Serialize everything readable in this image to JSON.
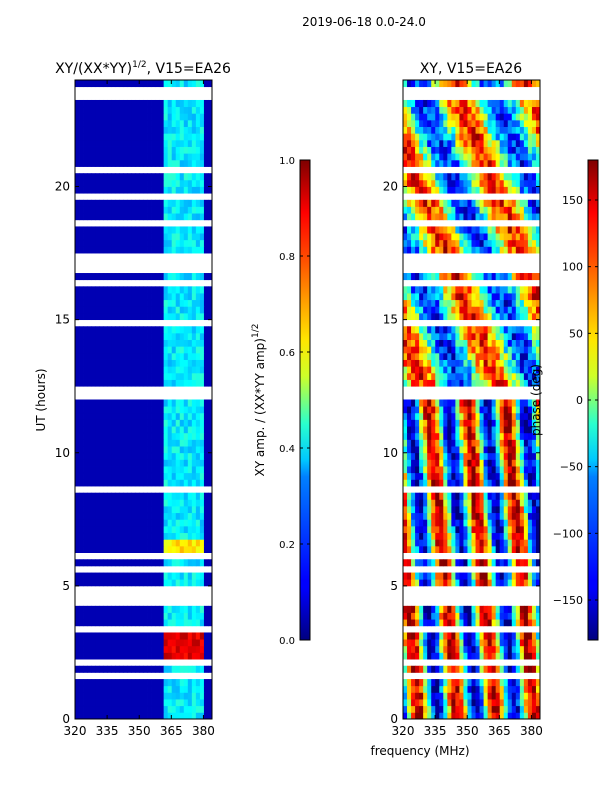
{
  "figure": {
    "suptitle": "2019-06-18 0.0-24.0",
    "xlabel": "frequency (MHz)"
  },
  "chart_data": [
    {
      "type": "heatmap",
      "title_main": "XY/(XX*YY)",
      "title_sup": "1/2",
      "title_suffix": ", V15=EA26",
      "xlabel": "",
      "ylabel": "UT (hours)",
      "xlim": [
        320,
        384
      ],
      "ylim": [
        0,
        24
      ],
      "xticks": [
        320,
        335,
        350,
        365,
        380
      ],
      "yticks": [
        0,
        5,
        10,
        15,
        20
      ],
      "colorbar": {
        "label_main": "XY amp. / (XX*YY amp)",
        "label_sup": "1/2",
        "range": [
          0.0,
          1.0
        ],
        "ticks": [
          "0.0",
          "0.2",
          "0.4",
          "0.6",
          "0.8",
          "1.0"
        ],
        "tick_values": [
          0.0,
          0.2,
          0.4,
          0.6,
          0.8,
          1.0
        ],
        "colormap": "jet"
      },
      "description_values": {
        "background_level": 0.05,
        "channel_band_MHz": [
          362,
          380
        ],
        "channel_band_level": 0.3,
        "bright_region_hours": [
          2.3,
          3.3
        ],
        "bright_region_level": 0.85,
        "bright_region2_hours": [
          6.1,
          6.8
        ],
        "bright_region2_level": 0.6
      }
    },
    {
      "type": "heatmap",
      "title_main": "XY",
      "title_sup": "",
      "title_suffix": ", V15=EA26",
      "xlabel": "",
      "ylabel": "",
      "xlim": [
        320,
        384
      ],
      "ylim": [
        0,
        24
      ],
      "xticks": [
        320,
        335,
        350,
        365,
        380
      ],
      "yticks": [
        0,
        5,
        10,
        15,
        20
      ],
      "colorbar": {
        "label_main": "phase (deg)",
        "label_sup": "",
        "range": [
          -180,
          180
        ],
        "ticks": [
          "-150",
          "-100",
          "-50",
          "0",
          "50",
          "100",
          "150"
        ],
        "tick_values": [
          -150,
          -100,
          -50,
          0,
          50,
          100,
          150
        ],
        "colormap": "jet"
      }
    }
  ],
  "flagged_gaps_hours": [
    [
      0.05,
      0.1
    ],
    [
      0.5,
      0.55
    ],
    [
      0.9,
      0.95
    ],
    [
      1.5,
      1.8
    ],
    [
      1.95,
      2.15
    ],
    [
      3.35,
      3.45
    ],
    [
      3.7,
      3.78
    ],
    [
      4.0,
      4.08
    ],
    [
      4.3,
      4.38
    ],
    [
      4.6,
      4.66
    ],
    [
      4.85,
      4.92
    ],
    [
      5.5,
      5.85
    ],
    [
      6.05,
      6.15
    ],
    [
      7.4,
      7.48
    ],
    [
      8.2,
      8.28
    ],
    [
      8.6,
      8.68
    ],
    [
      9.4,
      9.46
    ],
    [
      9.9,
      9.98
    ],
    [
      10.3,
      10.36
    ],
    [
      10.8,
      10.86
    ],
    [
      11.3,
      11.36
    ],
    [
      12.1,
      12.55
    ],
    [
      13.0,
      13.06
    ],
    [
      13.5,
      13.56
    ],
    [
      13.9,
      14.0
    ],
    [
      14.3,
      14.36
    ],
    [
      14.7,
      14.95
    ],
    [
      15.5,
      15.6
    ],
    [
      16.3,
      16.4
    ],
    [
      16.8,
      17.6
    ],
    [
      17.8,
      17.86
    ],
    [
      18.0,
      18.06
    ],
    [
      18.2,
      18.26
    ],
    [
      18.4,
      18.48
    ],
    [
      18.6,
      18.66
    ],
    [
      19.2,
      19.26
    ],
    [
      19.6,
      19.66
    ],
    [
      20.2,
      20.26
    ],
    [
      20.6,
      20.66
    ],
    [
      21.0,
      21.06
    ],
    [
      21.8,
      21.86
    ],
    [
      22.5,
      22.56
    ],
    [
      23.0,
      23.06
    ],
    [
      23.3,
      23.4
    ],
    [
      23.55,
      23.75
    ]
  ]
}
